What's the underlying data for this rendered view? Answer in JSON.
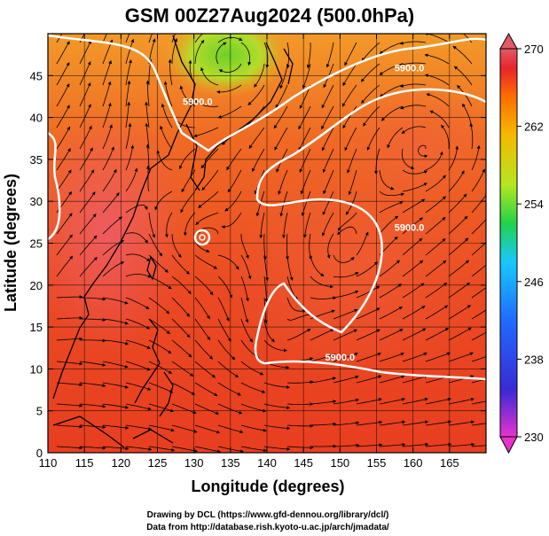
{
  "title": "GSM 00Z27Aug2024 (500.0hPa)",
  "x_label": "Longitude (degrees)",
  "y_label": "Latitude  (degrees)",
  "x_ticks": [
    "110",
    "115",
    "120",
    "125",
    "130",
    "135",
    "140",
    "145",
    "150",
    "155",
    "160",
    "165"
  ],
  "y_ticks": [
    "0",
    "5",
    "10",
    "15",
    "20",
    "25",
    "30",
    "35",
    "40",
    "45"
  ],
  "x_range": [
    110,
    170
  ],
  "y_range": [
    0,
    50
  ],
  "colorbar": {
    "ticks": [
      "230",
      "238",
      "246",
      "254",
      "262",
      "270"
    ],
    "range": [
      230,
      270
    ],
    "colors": [
      "#e633cc",
      "#3a2ad6",
      "#1f6bff",
      "#19c8ff",
      "#22d24a",
      "#b6e61e",
      "#f5b800",
      "#ff6a00",
      "#e8242c",
      "#e05a66"
    ]
  },
  "contours": [
    {
      "label": "5900.0",
      "lon": 130.5,
      "lat": 41.5
    },
    {
      "label": "5900.0",
      "lon": 159.5,
      "lat": 45.5
    },
    {
      "label": "5900.0",
      "lon": 159.5,
      "lat": 26.5
    },
    {
      "label": "5900.0",
      "lon": 150,
      "lat": 11
    }
  ],
  "credits": [
    "Drawing by DCL (https://www.gfd-dennou.org/library/dcl/)",
    "Data from http://database.rish.kyoto-u.ac.jp/arch/jmadata/"
  ]
}
